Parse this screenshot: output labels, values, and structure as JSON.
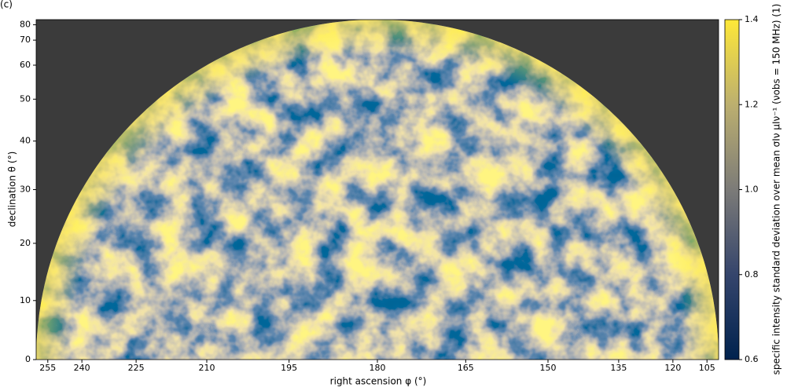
{
  "chart_data": {
    "type": "skymap",
    "panel_label": "(c)",
    "xlabel": "right ascension φ (°)",
    "ylabel": "declination θ (°)",
    "projection": "orthographic",
    "xlim": [
      270,
      90
    ],
    "xticks": [
      255,
      240,
      225,
      210,
      195,
      180,
      165,
      150,
      135,
      120,
      105
    ],
    "ylim": [
      0,
      90
    ],
    "yticks": [
      0,
      10,
      20,
      30,
      40,
      50,
      60,
      70,
      80
    ],
    "colormap": "cividis",
    "background": "#3b3b3b",
    "colorbar": {
      "label": "specific intensity standard deviation over mean σIν μIν⁻¹ (νobs = 150 MHz) (1)",
      "lim": [
        0.6,
        1.4
      ],
      "ticks": [
        0.6,
        0.8,
        {
          "value": 1,
          "label": "1.0"
        },
        1.2,
        1.4
      ]
    }
  }
}
